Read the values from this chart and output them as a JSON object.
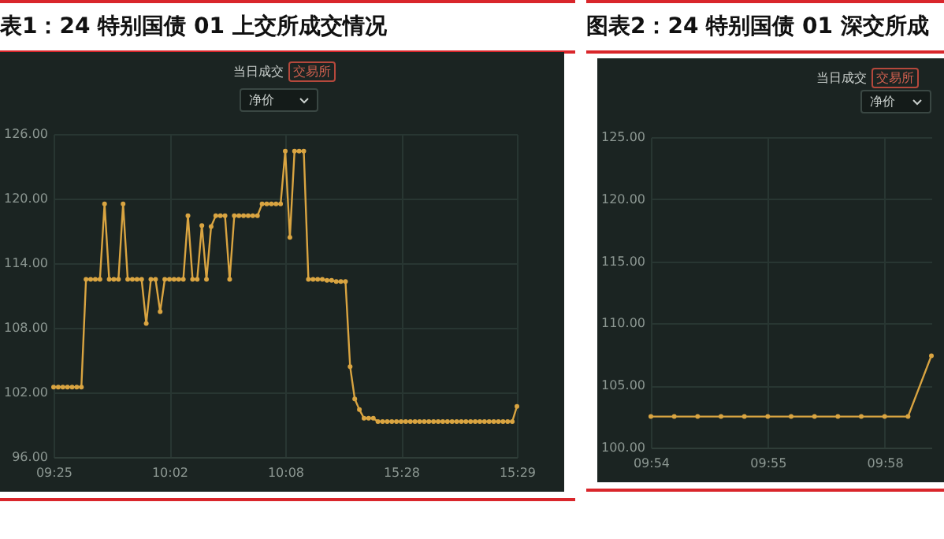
{
  "chart_data": [
    {
      "type": "line",
      "title": "表1：24 特别国债 01 上交所成交情况",
      "annotations": [
        "当日成交",
        "交易所",
        "净价"
      ],
      "categories": [
        "09:25",
        null,
        null,
        null,
        null,
        null,
        null,
        null,
        null,
        null,
        null,
        null,
        null,
        null,
        null,
        null,
        null,
        null,
        null,
        null,
        null,
        null,
        null,
        null,
        null,
        "10:02",
        null,
        null,
        null,
        null,
        null,
        null,
        null,
        null,
        null,
        null,
        null,
        null,
        null,
        null,
        null,
        null,
        null,
        null,
        null,
        null,
        null,
        null,
        null,
        null,
        "10:08",
        null,
        null,
        null,
        null,
        null,
        null,
        null,
        null,
        null,
        null,
        null,
        null,
        null,
        null,
        null,
        null,
        null,
        null,
        null,
        null,
        null,
        null,
        null,
        null,
        "15:28",
        null,
        null,
        null,
        null,
        null,
        null,
        null,
        null,
        null,
        null,
        null,
        null,
        null,
        null,
        null,
        null,
        null,
        null,
        null,
        null,
        null,
        null,
        null,
        null,
        "15:29"
      ],
      "values": [
        102.5,
        102.5,
        102.5,
        102.5,
        102.5,
        102.5,
        102.5,
        112.5,
        112.5,
        112.5,
        112.5,
        119.5,
        112.5,
        112.5,
        112.5,
        119.5,
        112.5,
        112.5,
        112.5,
        112.5,
        108.4,
        112.5,
        112.5,
        109.5,
        112.5,
        112.5,
        112.5,
        112.5,
        112.5,
        118.4,
        112.5,
        112.5,
        117.5,
        112.5,
        117.4,
        118.4,
        118.4,
        118.4,
        112.5,
        118.4,
        118.4,
        118.4,
        118.4,
        118.4,
        118.4,
        119.5,
        119.5,
        119.5,
        119.5,
        119.5,
        124.4,
        116.4,
        124.4,
        124.4,
        124.4,
        112.5,
        112.5,
        112.5,
        112.5,
        112.4,
        112.4,
        112.3,
        112.3,
        112.3,
        104.4,
        101.4,
        100.4,
        99.6,
        99.6,
        99.6,
        99.3,
        99.3,
        99.3,
        99.3,
        99.3,
        99.3,
        99.3,
        99.3,
        99.3,
        99.3,
        99.3,
        99.3,
        99.3,
        99.3,
        99.3,
        99.3,
        99.3,
        99.3,
        99.3,
        99.3,
        99.3,
        99.3,
        99.3,
        99.3,
        99.3,
        99.3,
        99.3,
        99.3,
        99.3,
        99.3,
        100.7
      ],
      "color": "#d9a441",
      "ylim": [
        96,
        126
      ],
      "yticks": [
        {
          "value": 96,
          "label": "96.00"
        },
        {
          "value": 102,
          "label": "102.00"
        },
        {
          "value": 108,
          "label": "108.00"
        },
        {
          "value": 114,
          "label": "114.00"
        },
        {
          "value": 120,
          "label": "120.00"
        },
        {
          "value": 126,
          "label": "126.00"
        }
      ],
      "grid": true,
      "marker": "circle"
    },
    {
      "type": "line",
      "title": "图表2：24 特别国债 01 深交所成",
      "annotations": [
        "当日成交",
        "交易所",
        "净价"
      ],
      "categories": [
        "09:54",
        null,
        null,
        null,
        null,
        "09:55",
        null,
        null,
        null,
        null,
        "09:58",
        null,
        null
      ],
      "values": [
        102.5,
        102.5,
        102.5,
        102.5,
        102.5,
        102.5,
        102.5,
        102.5,
        102.5,
        102.5,
        102.5,
        102.5,
        107.4
      ],
      "color": "#d9a441",
      "ylim": [
        100,
        125
      ],
      "yticks": [
        {
          "value": 100,
          "label": "100.00"
        },
        {
          "value": 105,
          "label": "105.00"
        },
        {
          "value": 110,
          "label": "110.00"
        },
        {
          "value": 115,
          "label": "115.00"
        },
        {
          "value": 120,
          "label": "120.00"
        },
        {
          "value": 125,
          "label": "125.00"
        }
      ],
      "grid": true,
      "marker": "circle"
    }
  ]
}
